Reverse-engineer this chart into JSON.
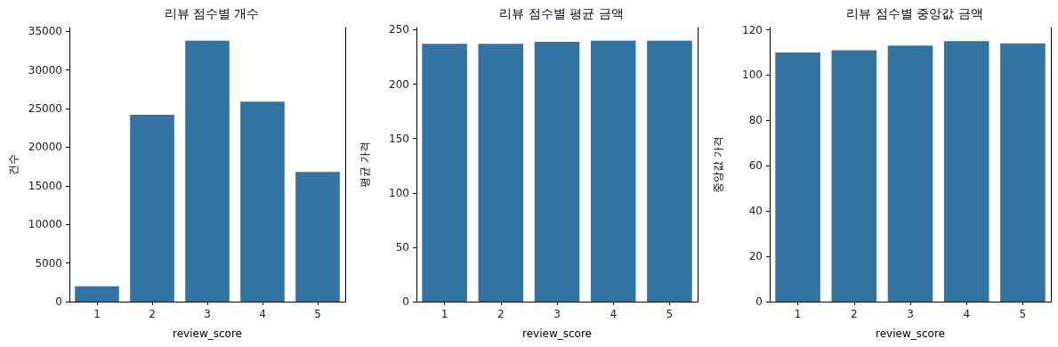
{
  "chart_data": [
    {
      "type": "bar",
      "title": "리뷰 점수별 개수",
      "xlabel": "review_score",
      "ylabel": "건수",
      "categories": [
        "1",
        "2",
        "3",
        "4",
        "5"
      ],
      "values": [
        2000,
        24200,
        33800,
        25900,
        16800
      ],
      "color": "#3274a1",
      "ylim": [
        0,
        35500
      ],
      "yticks": [
        0,
        5000,
        10000,
        15000,
        20000,
        25000,
        30000,
        35000
      ],
      "grid": false
    },
    {
      "type": "bar",
      "title": "리뷰 점수별 평균 금액",
      "xlabel": "review_score",
      "ylabel": "평균 가격",
      "categories": [
        "1",
        "2",
        "3",
        "4",
        "5"
      ],
      "values": [
        237,
        237,
        239,
        240,
        240
      ],
      "color": "#3274a1",
      "ylim": [
        0,
        252
      ],
      "yticks": [
        0,
        50,
        100,
        150,
        200,
        250
      ],
      "grid": false
    },
    {
      "type": "bar",
      "title": "리뷰 점수별 중앙값 금액",
      "xlabel": "review_score",
      "ylabel": "중앙값 가격",
      "categories": [
        "1",
        "2",
        "3",
        "4",
        "5"
      ],
      "values": [
        110,
        111,
        113,
        115,
        114
      ],
      "color": "#3274a1",
      "ylim": [
        0,
        121
      ],
      "yticks": [
        0,
        20,
        40,
        60,
        80,
        100,
        120
      ],
      "grid": false
    }
  ]
}
